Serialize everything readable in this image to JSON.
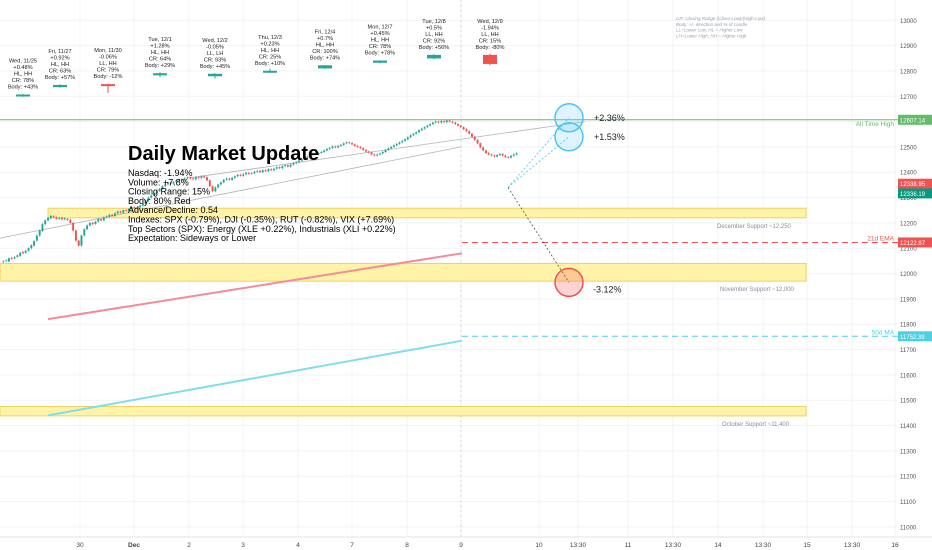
{
  "chart_data": {
    "type": "candlestick",
    "title": "Daily Market Update",
    "summary_lines": [
      "Nasdaq: -1.94%",
      "Volume: +7.8%",
      "Closing Range: 15%",
      "Body: 80% Red",
      "Advance/Decline: 0.54",
      "Indexes: SPX (-0.79%), DJI (-0.35%), RUT (-0.82%), VIX (+7.69%)",
      "Top Sectors (SPX): Energy (XLE +0.22%), Industrials (XLI +0.22%)",
      "Expectation: Sideways or Lower"
    ],
    "legend_lines": [
      "CR: Closing Range (Close-Low)/(High-Low)",
      "Body: +/- direction and % of candle",
      "LL=Lower Low, HL = Higher Low",
      "LH=Lower High, HH = Higher High"
    ],
    "y_axis": {
      "range": [
        10960,
        13080
      ],
      "ticks": [
        11000,
        11100,
        11200,
        11300,
        11400,
        11500,
        11600,
        11700,
        11800,
        11900,
        12000,
        12100,
        12200,
        12300,
        12400,
        12500,
        12600,
        12700,
        12800,
        12900,
        13000
      ]
    },
    "x_axis": {
      "ticks": [
        "30",
        "Dec",
        "2",
        "3",
        "4",
        "7",
        "8",
        "9",
        "10",
        "13:30",
        "11",
        "13:30",
        "14",
        "13:30",
        "15",
        "13:30",
        "16"
      ]
    },
    "daily_candles": [
      {
        "label": [
          "Wed, 11/25",
          "+0.48%",
          "HL, HH",
          "CR: 78%",
          "Body: +43%"
        ],
        "open": 12066,
        "high": 12093,
        "low": 12058,
        "close": 12086,
        "color": "#26a69a"
      },
      {
        "label": [
          "Fri, 11/27",
          "+0.92%",
          "HL, HH",
          "CR: 63%",
          "Body: +57%"
        ],
        "open": 12180,
        "high": 12215,
        "low": 12172,
        "close": 12208,
        "color": "#26a69a"
      },
      {
        "label": [
          "Mon, 11/30",
          "-0.06%",
          "LL, HH",
          "CR: 79%",
          "Body: -12%"
        ],
        "open": 12218,
        "high": 12225,
        "low": 12105,
        "close": 12205,
        "color": "#ef5350"
      },
      {
        "label": [
          "Tue, 12/1",
          "+1.28%",
          "HL, HH",
          "CR: 64%",
          "Body: +29%"
        ],
        "open": 12330,
        "high": 12370,
        "low": 12308,
        "close": 12357,
        "color": "#26a69a"
      },
      {
        "label": [
          "Wed, 12/2",
          "-0.05%",
          "LL, LH",
          "CR: 93%",
          "Body: +45%"
        ],
        "open": 12318,
        "high": 12358,
        "low": 12288,
        "close": 12350,
        "color": "#26a69a"
      },
      {
        "label": [
          "Thu, 12/3",
          "+0.23%",
          "HL, HH",
          "CR: 25%",
          "Body: +10%"
        ],
        "open": 12380,
        "high": 12415,
        "low": 12370,
        "close": 12388,
        "color": "#26a69a"
      },
      {
        "label": [
          "Fri, 12/4",
          "+0.7%",
          "HL, HH",
          "CR: 100%",
          "Body: +74%"
        ],
        "open": 12418,
        "high": 12460,
        "low": 12412,
        "close": 12458,
        "color": "#26a69a"
      },
      {
        "label": [
          "Mon, 12/7",
          "+0.45%",
          "HL, HH",
          "CR: 78%",
          "Body: +78%"
        ],
        "open": 12490,
        "high": 12522,
        "low": 12482,
        "close": 12518,
        "color": "#26a69a"
      },
      {
        "label": [
          "Tue, 12/8",
          "+0.5%",
          "LL, HH",
          "CR: 92%",
          "Body: +56%"
        ],
        "open": 12545,
        "high": 12598,
        "low": 12538,
        "close": 12590,
        "color": "#26a69a"
      },
      {
        "label": [
          "Wed, 12/9",
          "-1.94%",
          "LL, HH",
          "CR: 15%",
          "Body: -80%"
        ],
        "open": 12590,
        "high": 12605,
        "low": 12455,
        "close": 12475,
        "color": "#ef5350"
      }
    ],
    "intraday_path": [
      [
        12045,
        12048
      ],
      [
        12050,
        12052
      ],
      [
        12048,
        12060
      ],
      [
        12062,
        12058
      ],
      [
        12060,
        12065
      ],
      [
        12066,
        12072
      ],
      [
        12070,
        12082
      ],
      [
        12085,
        12080
      ],
      [
        12082,
        12090
      ],
      [
        12090,
        12100
      ],
      [
        12100,
        12112
      ],
      [
        12110,
        12128
      ],
      [
        12130,
        12150
      ],
      [
        12150,
        12170
      ],
      [
        12168,
        12195
      ],
      [
        12195,
        12210
      ],
      [
        12210,
        12220
      ],
      [
        12218,
        12228
      ],
      [
        12226,
        12222
      ],
      [
        12222,
        12216
      ],
      [
        12216,
        12220
      ],
      [
        12220,
        12214
      ],
      [
        12214,
        12218
      ],
      [
        12216,
        12212
      ],
      [
        12212,
        12200
      ],
      [
        12200,
        12170
      ],
      [
        12170,
        12130
      ],
      [
        12130,
        12110
      ],
      [
        12110,
        12150
      ],
      [
        12150,
        12175
      ],
      [
        12175,
        12190
      ],
      [
        12190,
        12200
      ],
      [
        12200,
        12196
      ],
      [
        12196,
        12205
      ],
      [
        12205,
        12215
      ],
      [
        12215,
        12210
      ],
      [
        12210,
        12222
      ],
      [
        12222,
        12225
      ],
      [
        12225,
        12232
      ],
      [
        12232,
        12228
      ],
      [
        12228,
        12238
      ],
      [
        12238,
        12245
      ],
      [
        12245,
        12240
      ],
      [
        12240,
        12250
      ],
      [
        12250,
        12248
      ],
      [
        12248,
        12255
      ],
      [
        12255,
        12262
      ],
      [
        12262,
        12258
      ],
      [
        12258,
        12262
      ],
      [
        12262,
        12268
      ],
      [
        12268,
        12275
      ],
      [
        12275,
        12288
      ],
      [
        12288,
        12300
      ],
      [
        12300,
        12308
      ],
      [
        12308,
        12318
      ],
      [
        12318,
        12325
      ],
      [
        12325,
        12335
      ],
      [
        12335,
        12345
      ],
      [
        12345,
        12352
      ],
      [
        12352,
        12360
      ],
      [
        12360,
        12355
      ],
      [
        12355,
        12362
      ],
      [
        12362,
        12368
      ],
      [
        12368,
        12372
      ],
      [
        12372,
        12368
      ],
      [
        12368,
        12376
      ],
      [
        12376,
        12380
      ],
      [
        12380,
        12375
      ],
      [
        12375,
        12372
      ],
      [
        12372,
        12380
      ],
      [
        12380,
        12378
      ],
      [
        12378,
        12384
      ],
      [
        12384,
        12380
      ],
      [
        12380,
        12368
      ],
      [
        12368,
        12345
      ],
      [
        12345,
        12325
      ],
      [
        12325,
        12340
      ],
      [
        12340,
        12352
      ],
      [
        12352,
        12360
      ],
      [
        12360,
        12370
      ],
      [
        12370,
        12375
      ],
      [
        12375,
        12370
      ],
      [
        12370,
        12378
      ],
      [
        12378,
        12384
      ],
      [
        12384,
        12390
      ],
      [
        12390,
        12386
      ],
      [
        12386,
        12392
      ],
      [
        12392,
        12398
      ],
      [
        12398,
        12394
      ],
      [
        12394,
        12396
      ],
      [
        12396,
        12402
      ],
      [
        12402,
        12405
      ],
      [
        12405,
        12400
      ],
      [
        12400,
        12408
      ],
      [
        12408,
        12404
      ],
      [
        12404,
        12412
      ],
      [
        12412,
        12408
      ],
      [
        12408,
        12414
      ],
      [
        12414,
        12420
      ],
      [
        12420,
        12416
      ],
      [
        12416,
        12424
      ],
      [
        12424,
        12428
      ],
      [
        12428,
        12422
      ],
      [
        12422,
        12430
      ],
      [
        12430,
        12436
      ],
      [
        12436,
        12440
      ],
      [
        12440,
        12446
      ],
      [
        12446,
        12452
      ],
      [
        12452,
        12458
      ],
      [
        12458,
        12462
      ],
      [
        12462,
        12468
      ],
      [
        12468,
        12474
      ],
      [
        12474,
        12470
      ],
      [
        12470,
        12476
      ],
      [
        12476,
        12480
      ],
      [
        12480,
        12486
      ],
      [
        12486,
        12492
      ],
      [
        12492,
        12496
      ],
      [
        12496,
        12502
      ],
      [
        12502,
        12498
      ],
      [
        12498,
        12504
      ],
      [
        12504,
        12508
      ],
      [
        12508,
        12514
      ],
      [
        12514,
        12518
      ],
      [
        12518,
        12515
      ],
      [
        12515,
        12510
      ],
      [
        12510,
        12504
      ],
      [
        12504,
        12500
      ],
      [
        12500,
        12495
      ],
      [
        12495,
        12488
      ],
      [
        12488,
        12482
      ],
      [
        12482,
        12478
      ],
      [
        12478,
        12470
      ],
      [
        12470,
        12466
      ],
      [
        12466,
        12470
      ],
      [
        12470,
        12474
      ],
      [
        12474,
        12480
      ],
      [
        12480,
        12488
      ],
      [
        12488,
        12494
      ],
      [
        12494,
        12500
      ],
      [
        12500,
        12506
      ],
      [
        12506,
        12512
      ],
      [
        12512,
        12518
      ],
      [
        12518,
        12524
      ],
      [
        12524,
        12530
      ],
      [
        12530,
        12538
      ],
      [
        12538,
        12546
      ],
      [
        12546,
        12552
      ],
      [
        12552,
        12558
      ],
      [
        12558,
        12566
      ],
      [
        12566,
        12572
      ],
      [
        12572,
        12578
      ],
      [
        12578,
        12584
      ],
      [
        12584,
        12590
      ],
      [
        12590,
        12596
      ],
      [
        12596,
        12600
      ],
      [
        12600,
        12596
      ],
      [
        12596,
        12602
      ],
      [
        12602,
        12598
      ],
      [
        12598,
        12604
      ],
      [
        12604,
        12600
      ],
      [
        12600,
        12596
      ],
      [
        12596,
        12590
      ],
      [
        12590,
        12584
      ],
      [
        12584,
        12578
      ],
      [
        12578,
        12570
      ],
      [
        12570,
        12562
      ],
      [
        12562,
        12552
      ],
      [
        12552,
        12540
      ],
      [
        12540,
        12528
      ],
      [
        12528,
        12514
      ],
      [
        12514,
        12498
      ],
      [
        12498,
        12486
      ],
      [
        12486,
        12476
      ],
      [
        12476,
        12470
      ],
      [
        12470,
        12466
      ],
      [
        12466,
        12462
      ],
      [
        12462,
        12468
      ],
      [
        12468,
        12472
      ],
      [
        12472,
        12466
      ],
      [
        12466,
        12460
      ],
      [
        12460,
        12458
      ],
      [
        12458,
        12465
      ],
      [
        12465,
        12470
      ],
      [
        12470,
        12475
      ]
    ],
    "zones": [
      {
        "label": "December Support ~12,250",
        "low": 12220,
        "high": 12258,
        "color": "#fff3a8"
      },
      {
        "label": "November Support ~12,000",
        "low": 11970,
        "high": 12040,
        "color": "#fff3a8"
      },
      {
        "label": "October Support ~11,400",
        "low": 11438,
        "high": 11475,
        "color": "#fff3a8"
      }
    ],
    "levels": [
      {
        "label": "All Time High",
        "value": 12607.14,
        "price_label": "12607.14",
        "color": "#66bb6a",
        "style": "solid"
      },
      {
        "label": "21d EMA",
        "value": 12122.87,
        "price_label": "12122.87",
        "color": "#ef5350",
        "style": "dashed"
      },
      {
        "label": "50d MA",
        "value": 11752.39,
        "price_label": "11752.39",
        "color": "#4dd0e1",
        "style": "dashed"
      }
    ],
    "price_markers": [
      {
        "value": 12338.95,
        "label": "12338.95",
        "color": "#ef5350"
      },
      {
        "value": 12336.19,
        "label": "12336.19",
        "color": "#089981"
      }
    ],
    "moving_averages": [
      {
        "name": "21d EMA",
        "from": 11820,
        "to": 12080,
        "color": "#f28b9a"
      },
      {
        "name": "50d MA",
        "from": 11440,
        "to": 11735,
        "color": "#80deea"
      }
    ],
    "projections": [
      {
        "label": "+2.36%",
        "target": 12615,
        "color": "#4fc3f7"
      },
      {
        "label": "+1.53%",
        "target": 12540,
        "color": "#4fc3f7"
      },
      {
        "label": "-3.12%",
        "target": 11965,
        "color": "#ef5350"
      }
    ]
  }
}
